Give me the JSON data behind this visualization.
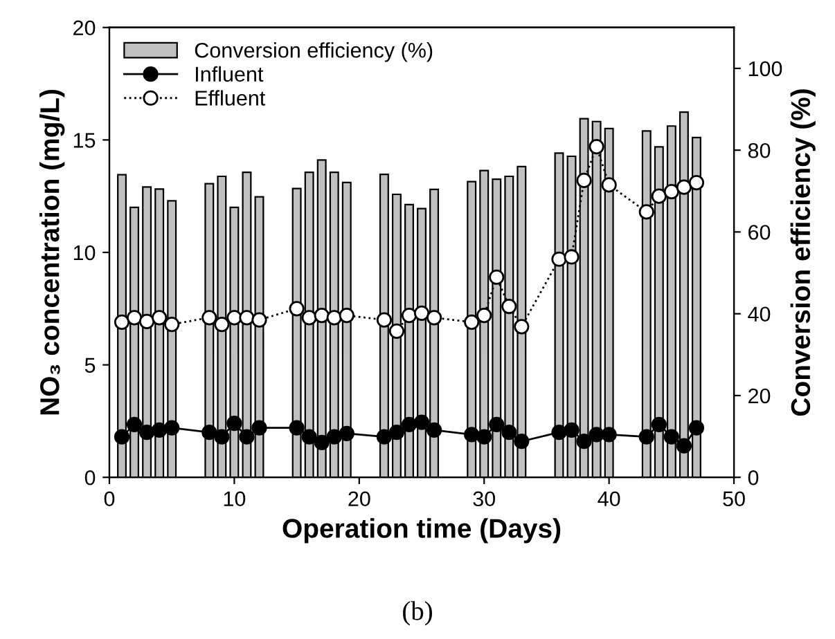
{
  "chart_data": {
    "type": "line",
    "xlabel": "Operation time (Days)",
    "ylabel": "NO₃ concentration (mg/L)",
    "y2label": "Conversion efficiency (%)",
    "x": [
      1,
      2,
      3,
      4,
      5,
      8,
      9,
      10,
      11,
      12,
      15,
      16,
      17,
      18,
      19,
      22,
      23,
      24,
      25,
      26,
      29,
      30,
      31,
      32,
      33,
      36,
      37,
      38,
      39,
      40,
      43,
      44,
      45,
      46,
      47
    ],
    "series": [
      {
        "name": "Conversion efficiency (%)",
        "type": "bar",
        "axis": "y2",
        "color": "#c0c0c0",
        "values": [
          74,
          66,
          71,
          70.5,
          67.6,
          71.8,
          73.6,
          66,
          74.6,
          68.6,
          70.6,
          74.6,
          77.6,
          74.6,
          72.1,
          74.1,
          69.2,
          66.7,
          65.7,
          70.4,
          72.3,
          75,
          72.9,
          73.6,
          76,
          79.3,
          78.5,
          87.7,
          87,
          85.3,
          84.7,
          80.8,
          85.9,
          89.3,
          83.1
        ]
      },
      {
        "name": "Influent",
        "color": "#000000",
        "marker": "circle",
        "line_style": "solid",
        "values": [
          1.8,
          2.35,
          2.0,
          2.1,
          2.2,
          2.0,
          1.8,
          2.4,
          1.8,
          2.2,
          2.2,
          1.8,
          1.55,
          1.8,
          1.95,
          1.8,
          2.0,
          2.35,
          2.45,
          2.1,
          1.9,
          1.8,
          2.35,
          2.0,
          1.6,
          2.0,
          2.1,
          1.6,
          1.9,
          1.9,
          1.8,
          2.35,
          1.8,
          1.4,
          2.2
        ]
      },
      {
        "name": "Effluent",
        "color": "#ffffff",
        "marker": "circle",
        "line_style": "dotted",
        "values": [
          6.9,
          7.1,
          6.93,
          7.1,
          6.8,
          7.1,
          6.8,
          7.1,
          7.1,
          7.0,
          7.5,
          7.1,
          7.2,
          7.1,
          7.2,
          7.0,
          6.5,
          7.2,
          7.3,
          7.1,
          6.9,
          7.2,
          8.9,
          7.6,
          6.7,
          9.7,
          9.8,
          13.2,
          14.7,
          13.0,
          11.8,
          12.5,
          12.7,
          12.9,
          13.1
        ]
      }
    ],
    "xlim": [
      0,
      50
    ],
    "xticks": [
      0,
      10,
      20,
      30,
      40,
      50
    ],
    "ylim": [
      0,
      20
    ],
    "yticks": [
      0,
      5,
      10,
      15,
      20
    ],
    "y2lim": [
      0,
      110
    ],
    "y2ticks": [
      0,
      20,
      40,
      60,
      80,
      100
    ],
    "grid": false,
    "legend": "top left",
    "annotations": [
      "(b)"
    ]
  }
}
